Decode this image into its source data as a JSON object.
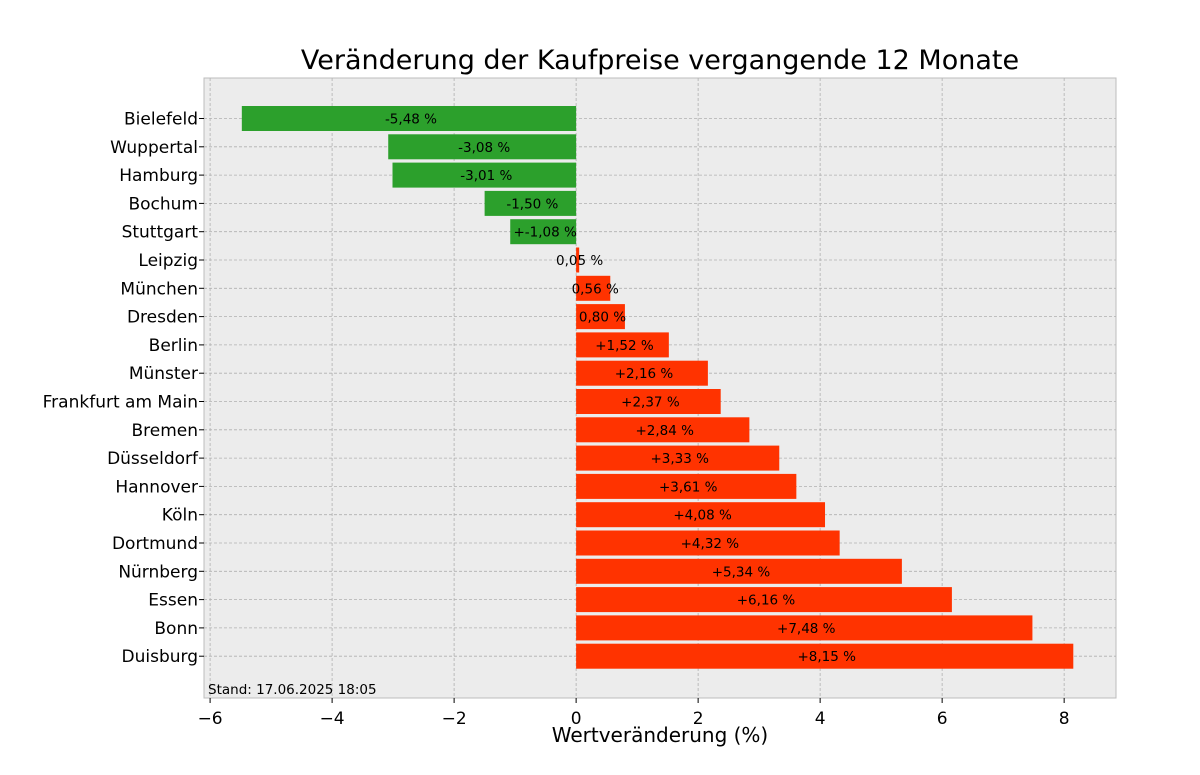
{
  "chart_data": {
    "type": "bar",
    "orientation": "horizontal",
    "title": "Veränderung der Kaufpreise vergangende 12 Monate",
    "xlabel": "Wertveränderung (%)",
    "ylabel": "",
    "xlim": [
      -6.1,
      8.85
    ],
    "xticks": [
      -6,
      -4,
      -2,
      0,
      2,
      4,
      6,
      8
    ],
    "xtick_labels": [
      "−6",
      "−4",
      "−2",
      "0",
      "2",
      "4",
      "6",
      "8"
    ],
    "grid": true,
    "note": "Stand: 17.06.2025 18:05",
    "colors": {
      "negative": "#2ca02c",
      "positive": "#ff3300",
      "background": "#ececec"
    },
    "categories": [
      "Bielefeld",
      "Wuppertal",
      "Hamburg",
      "Bochum",
      "Stuttgart",
      "Leipzig",
      "München",
      "Dresden",
      "Berlin",
      "Münster",
      "Frankfurt am Main",
      "Bremen",
      "Düsseldorf",
      "Hannover",
      "Köln",
      "Dortmund",
      "Nürnberg",
      "Essen",
      "Bonn",
      "Duisburg"
    ],
    "values": [
      -5.48,
      -3.08,
      -3.01,
      -1.5,
      -1.08,
      0.05,
      0.56,
      0.8,
      1.52,
      2.16,
      2.37,
      2.84,
      3.33,
      3.61,
      4.08,
      4.32,
      5.34,
      6.16,
      7.48,
      8.15
    ],
    "value_labels": [
      "-5,48 %",
      "-3,08 %",
      "-3,01 %",
      "-1,50 %",
      "+-1,08 %",
      "0,05 %",
      "0,56 %",
      "0,80 %",
      "+1,52 %",
      "+2,16 %",
      "+2,37 %",
      "+2,84 %",
      "+3,33 %",
      "+3,61 %",
      "+4,08 %",
      "+4,32 %",
      "+5,34 %",
      "+6,16 %",
      "+7,48 %",
      "+8,15 %"
    ]
  }
}
